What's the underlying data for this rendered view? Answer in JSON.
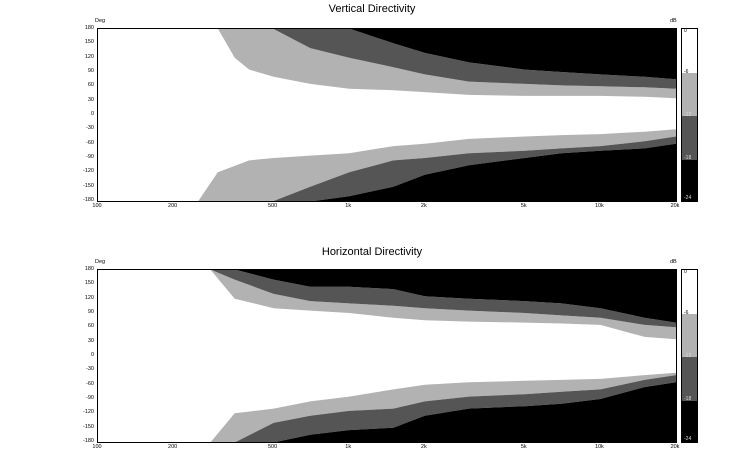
{
  "chart_data": [
    {
      "type": "heatmap",
      "title": "Vertical Directivity",
      "ylabel": "Deg",
      "colorbar_label": "dB",
      "x_scale": "log",
      "xlim": [
        100,
        20000
      ],
      "ylim": [
        -180,
        180
      ],
      "x_ticks": [
        100,
        200,
        500,
        1000,
        2000,
        5000,
        10000,
        20000
      ],
      "x_tick_labels": [
        "100",
        "200",
        "500",
        "1k",
        "2k",
        "5k",
        "10k",
        "20k"
      ],
      "y_ticks": [
        180,
        150,
        120,
        90,
        60,
        30,
        0,
        -30,
        -60,
        -90,
        -120,
        -150,
        -180
      ],
      "colorbar_ticks": [
        "0",
        "-6",
        "-12",
        "-18",
        "-24"
      ],
      "levels": [
        {
          "range": "0 to -6 dB",
          "color": "#ffffff"
        },
        {
          "range": "-6 to -12 dB",
          "color": "#b2b2b2"
        },
        {
          "range": "-12 to -18 dB",
          "color": "#555555"
        },
        {
          "range": "below -18 dB",
          "color": "#000000"
        }
      ],
      "contours": {
        "upper": {
          "freqs": [
            100,
            300,
            350,
            400,
            500,
            700,
            1000,
            1500,
            2000,
            3000,
            5000,
            7000,
            10000,
            15000,
            20000
          ],
          "l1": [
            181,
            181,
            120,
            95,
            80,
            65,
            55,
            52,
            48,
            42,
            40,
            40,
            40,
            38,
            35
          ],
          "l2": [
            181,
            181,
            181,
            181,
            180,
            140,
            120,
            100,
            85,
            70,
            65,
            62,
            60,
            58,
            55
          ],
          "l3": [
            181,
            181,
            181,
            181,
            181,
            181,
            181,
            150,
            130,
            110,
            95,
            90,
            85,
            80,
            75
          ]
        },
        "lower": {
          "freqs": [
            100,
            250,
            300,
            400,
            500,
            700,
            1000,
            1500,
            2000,
            3000,
            5000,
            7000,
            10000,
            15000,
            20000
          ],
          "l1": [
            -181,
            -181,
            -120,
            -95,
            -90,
            -85,
            -80,
            -65,
            -60,
            -50,
            -45,
            -42,
            -40,
            -35,
            -30
          ],
          "l2": [
            -181,
            -181,
            -181,
            -181,
            -180,
            -150,
            -120,
            -95,
            -90,
            -80,
            -75,
            -70,
            -65,
            -55,
            -45
          ],
          "l3": [
            -181,
            -181,
            -181,
            -181,
            -181,
            -181,
            -170,
            -150,
            -125,
            -105,
            -90,
            -80,
            -75,
            -70,
            -60
          ]
        }
      }
    },
    {
      "type": "heatmap",
      "title": "Horizontal Directivity",
      "ylabel": "Deg",
      "colorbar_label": "dB",
      "x_scale": "log",
      "xlim": [
        100,
        20000
      ],
      "ylim": [
        -180,
        180
      ],
      "x_ticks": [
        100,
        200,
        500,
        1000,
        2000,
        5000,
        10000,
        20000
      ],
      "x_tick_labels": [
        "100",
        "200",
        "500",
        "1k",
        "2k",
        "5k",
        "10k",
        "20k"
      ],
      "y_ticks": [
        180,
        150,
        120,
        90,
        60,
        30,
        0,
        -30,
        -60,
        -90,
        -120,
        -150,
        -180
      ],
      "colorbar_ticks": [
        "0",
        "-6",
        "-12",
        "-18",
        "-24"
      ],
      "levels": [
        {
          "range": "0 to -6 dB",
          "color": "#ffffff"
        },
        {
          "range": "-6 to -12 dB",
          "color": "#b2b2b2"
        },
        {
          "range": "-12 to -18 dB",
          "color": "#555555"
        },
        {
          "range": "below -18 dB",
          "color": "#000000"
        }
      ],
      "contours": {
        "upper": {
          "freqs": [
            100,
            280,
            350,
            500,
            700,
            1000,
            1500,
            2000,
            3000,
            5000,
            7000,
            10000,
            15000,
            20000
          ],
          "l1": [
            181,
            181,
            120,
            100,
            95,
            90,
            80,
            75,
            72,
            70,
            68,
            65,
            40,
            35
          ],
          "l2": [
            181,
            181,
            160,
            130,
            115,
            110,
            105,
            100,
            95,
            90,
            85,
            80,
            65,
            60
          ],
          "l3": [
            181,
            181,
            181,
            160,
            145,
            145,
            140,
            125,
            120,
            115,
            110,
            100,
            80,
            70
          ]
        },
        "lower": {
          "freqs": [
            100,
            280,
            350,
            500,
            700,
            1000,
            1500,
            2000,
            3000,
            5000,
            7000,
            10000,
            15000,
            20000
          ],
          "l1": [
            -181,
            -181,
            -120,
            -110,
            -95,
            -85,
            -70,
            -60,
            -55,
            -52,
            -50,
            -48,
            -40,
            -35
          ],
          "l2": [
            -181,
            -181,
            -181,
            -140,
            -125,
            -115,
            -110,
            -95,
            -85,
            -80,
            -75,
            -70,
            -50,
            -40
          ],
          "l3": [
            -181,
            -181,
            -181,
            -181,
            -165,
            -155,
            -150,
            -125,
            -110,
            -105,
            -100,
            -90,
            -65,
            -55
          ]
        }
      }
    }
  ]
}
